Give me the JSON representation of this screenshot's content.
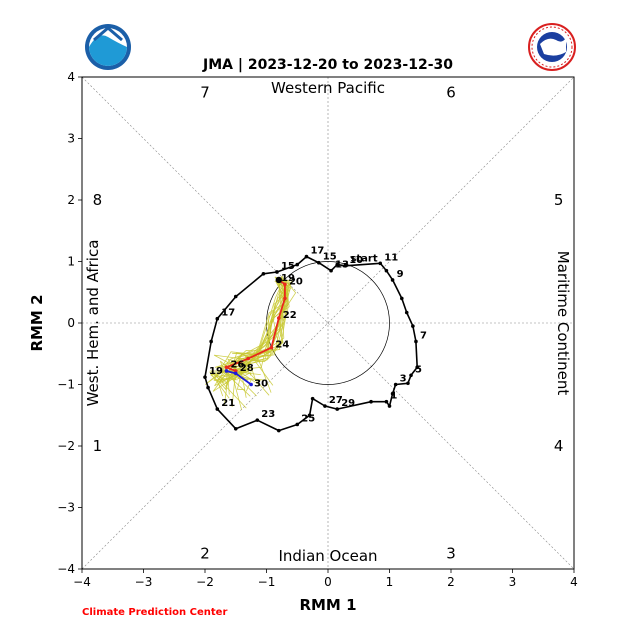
{
  "chart_data": {
    "type": "line",
    "title": "JMA | 2023-12-20 to 2023-12-30",
    "xlabel": "RMM 1",
    "ylabel": "RMM 2",
    "xlim": [
      -4,
      4
    ],
    "ylim": [
      -4,
      4
    ],
    "x_ticks": [
      "−4",
      "−3",
      "−2",
      "−1",
      "0",
      "1",
      "2",
      "3",
      "4"
    ],
    "y_ticks": [
      "−4",
      "−3",
      "−2",
      "−1",
      "0",
      "1",
      "2",
      "3",
      "4"
    ],
    "phase_numbers": [
      {
        "label": "1",
        "x": -3.75,
        "y": -2.0
      },
      {
        "label": "2",
        "x": -2.0,
        "y": -3.75
      },
      {
        "label": "3",
        "x": 2.0,
        "y": -3.75
      },
      {
        "label": "4",
        "x": 3.75,
        "y": -2.0
      },
      {
        "label": "5",
        "x": 3.75,
        "y": 2.0
      },
      {
        "label": "6",
        "x": 2.0,
        "y": 3.75
      },
      {
        "label": "7",
        "x": -2.0,
        "y": 3.75
      },
      {
        "label": "8",
        "x": -3.75,
        "y": 2.0
      }
    ],
    "regions": {
      "top": "Western Pacific",
      "bottom": "Indian Ocean",
      "left": "West. Hem. and Africa",
      "right": "Maritime Continent"
    },
    "observed": [
      {
        "x": 0.3,
        "y": 0.95,
        "label": "start"
      },
      {
        "x": 0.28,
        "y": 0.93,
        "label": "10"
      },
      {
        "x": 0.85,
        "y": 0.97,
        "label": "11"
      },
      {
        "x": 0.95,
        "y": 0.85
      },
      {
        "x": 1.05,
        "y": 0.7,
        "label": "9"
      },
      {
        "x": 1.2,
        "y": 0.4
      },
      {
        "x": 1.28,
        "y": 0.17
      },
      {
        "x": 1.38,
        "y": -0.05
      },
      {
        "x": 1.43,
        "y": -0.3,
        "label": "7"
      },
      {
        "x": 1.45,
        "y": -0.72
      },
      {
        "x": 1.35,
        "y": -0.85,
        "label": "5"
      },
      {
        "x": 1.3,
        "y": -0.98
      },
      {
        "x": 1.1,
        "y": -1.0,
        "label": "3"
      },
      {
        "x": 1.05,
        "y": -1.15
      },
      {
        "x": 1.0,
        "y": -1.35
      },
      {
        "x": 0.95,
        "y": -1.28,
        "label": "1"
      },
      {
        "x": 0.7,
        "y": -1.28
      },
      {
        "x": 0.15,
        "y": -1.4,
        "label": "29"
      },
      {
        "x": -0.05,
        "y": -1.35,
        "label": "27"
      },
      {
        "x": -0.25,
        "y": -1.23
      },
      {
        "x": -0.3,
        "y": -1.5
      },
      {
        "x": -0.5,
        "y": -1.65,
        "label": "25"
      },
      {
        "x": -0.8,
        "y": -1.75
      },
      {
        "x": -1.15,
        "y": -1.58,
        "label": "23"
      },
      {
        "x": -1.5,
        "y": -1.72
      },
      {
        "x": -1.8,
        "y": -1.4,
        "label": "21"
      },
      {
        "x": -1.95,
        "y": -1.05
      },
      {
        "x": -2.0,
        "y": -0.88,
        "label": "19"
      },
      {
        "x": -1.9,
        "y": -0.3
      },
      {
        "x": -1.8,
        "y": 0.07,
        "label": "17"
      },
      {
        "x": -1.5,
        "y": 0.43
      },
      {
        "x": -1.05,
        "y": 0.8
      },
      {
        "x": -0.83,
        "y": 0.83,
        "label": "15"
      },
      {
        "x": -0.5,
        "y": 0.95
      },
      {
        "x": -0.35,
        "y": 1.08,
        "label": "17"
      },
      {
        "x": -0.15,
        "y": 0.98,
        "label": "15"
      },
      {
        "x": 0.05,
        "y": 0.85,
        "label": "13"
      },
      {
        "x": 0.15,
        "y": 0.95
      },
      {
        "x": 0.28,
        "y": 0.93
      }
    ],
    "forecast_red": [
      {
        "x": -0.8,
        "y": 0.7
      },
      {
        "x": -0.7,
        "y": 0.63,
        "label": "20"
      },
      {
        "x": -0.7,
        "y": 0.4
      },
      {
        "x": -0.8,
        "y": 0.08,
        "label": "22"
      },
      {
        "x": -0.92,
        "y": -0.4,
        "label": "24"
      },
      {
        "x": -1.3,
        "y": -0.58
      },
      {
        "x": -1.65,
        "y": -0.72,
        "label": "26"
      },
      {
        "x": -1.5,
        "y": -0.78,
        "label": "28"
      }
    ],
    "forecast_blue": [
      {
        "x": -1.65,
        "y": -0.78
      },
      {
        "x": -1.5,
        "y": -0.82
      },
      {
        "x": -1.25,
        "y": -1.0,
        "label": "30"
      }
    ],
    "ensemble_color": "#c8c830",
    "observed_color": "#000000",
    "red_color": "#e8291c",
    "blue_color": "#1a1adb",
    "circle_radius": 1
  },
  "labels": {
    "dot_19_20": "19",
    "credit": "Climate Prediction Center"
  },
  "logos": {
    "left": "noaa-logo",
    "right": "nws-logo"
  }
}
